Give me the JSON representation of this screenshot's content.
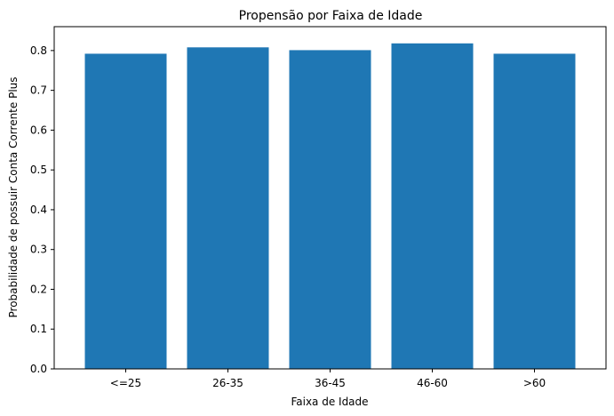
{
  "chart_data": {
    "type": "bar",
    "title": "Propensão por Faixa de Idade",
    "xlabel": "Faixa de Idade",
    "ylabel": "Probabilidade de possuir Conta Corrente Plus",
    "categories": [
      "<=25",
      "26-35",
      "36-45",
      "46-60",
      ">60"
    ],
    "values": [
      0.792,
      0.808,
      0.801,
      0.818,
      0.792
    ],
    "ylim": [
      0,
      0.86
    ],
    "yticks": [
      "0.0",
      "0.1",
      "0.2",
      "0.3",
      "0.4",
      "0.5",
      "0.6",
      "0.7",
      "0.8"
    ],
    "bar_color": "#1f77b4",
    "grid": false,
    "legend": "none"
  }
}
